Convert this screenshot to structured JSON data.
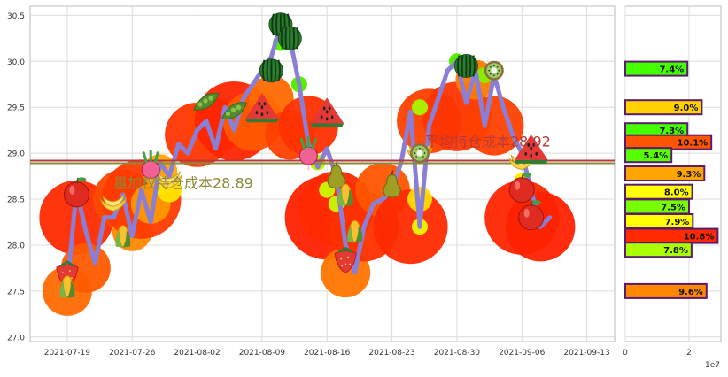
{
  "chart_data": [
    {
      "type": "line",
      "xlim": [
        "2021-07-15",
        "2021-09-16"
      ],
      "ylim": [
        26.95,
        30.6
      ],
      "x_tick_labels": [
        "2021-07-19",
        "2021-07-26",
        "2021-08-02",
        "2021-08-09",
        "2021-08-16",
        "2021-08-23",
        "2021-08-30",
        "2021-09-06",
        "2021-09-13"
      ],
      "y_ticks": [
        27.0,
        27.5,
        28.0,
        28.5,
        29.0,
        29.5,
        30.0,
        30.5
      ],
      "y_tick_labels": [
        "27.0",
        "27.5",
        "28.0",
        "28.5",
        "29.0",
        "29.5",
        "30.0",
        "30.5"
      ],
      "grid": true,
      "price_line": {
        "color": "#8a7fd6",
        "x": [
          "2021-07-19",
          "2021-07-20",
          "2021-07-21",
          "2021-07-22",
          "2021-07-23",
          "2021-07-24",
          "2021-07-25",
          "2021-07-26",
          "2021-07-27",
          "2021-07-28",
          "2021-07-29",
          "2021-07-30",
          "2021-07-31",
          "2021-08-01",
          "2021-08-02",
          "2021-08-03",
          "2021-08-04",
          "2021-08-05",
          "2021-08-06",
          "2021-08-07",
          "2021-08-08",
          "2021-08-09",
          "2021-08-10",
          "2021-08-11",
          "2021-08-12",
          "2021-08-13",
          "2021-08-14",
          "2021-08-15",
          "2021-08-16",
          "2021-08-17",
          "2021-08-18",
          "2021-08-19",
          "2021-08-20",
          "2021-08-21",
          "2021-08-22",
          "2021-08-23",
          "2021-08-24",
          "2021-08-25",
          "2021-08-26",
          "2021-08-27",
          "2021-08-28",
          "2021-08-29",
          "2021-08-30",
          "2021-08-31",
          "2021-09-01",
          "2021-09-02",
          "2021-09-03",
          "2021-09-04",
          "2021-09-05",
          "2021-09-06",
          "2021-09-07",
          "2021-09-08",
          "2021-09-09"
        ],
        "y": [
          27.55,
          28.6,
          28.15,
          27.8,
          28.3,
          28.3,
          28.55,
          28.1,
          28.6,
          28.25,
          28.9,
          28.75,
          29.1,
          29.0,
          29.25,
          29.35,
          29.05,
          29.5,
          29.25,
          29.6,
          29.75,
          29.9,
          30.05,
          30.4,
          30.25,
          29.75,
          29.1,
          28.85,
          29.05,
          28.75,
          28.0,
          27.7,
          28.2,
          28.45,
          28.5,
          28.6,
          28.9,
          29.45,
          28.2,
          29.3,
          29.6,
          29.9,
          30.0,
          29.55,
          29.9,
          29.3,
          29.85,
          29.5,
          29.2,
          29.0,
          28.6,
          28.2,
          28.3
        ]
      },
      "bubbles": [
        {
          "x": "2021-07-19",
          "y": 27.5,
          "color": "#ff6a00",
          "size": 1.0
        },
        {
          "x": "2021-07-20",
          "y": 28.3,
          "color": "#ff2a00",
          "size": 1.5
        },
        {
          "x": "2021-07-21",
          "y": 27.75,
          "color": "#ff5a00",
          "size": 1.0
        },
        {
          "x": "2021-07-25",
          "y": 28.5,
          "color": "#ff4a00",
          "size": 1.2
        },
        {
          "x": "2021-07-26",
          "y": 28.15,
          "color": "#ff8800",
          "size": 0.8
        },
        {
          "x": "2021-07-27",
          "y": 28.5,
          "color": "#ff3a00",
          "size": 1.6
        },
        {
          "x": "2021-07-28",
          "y": 28.45,
          "color": "#ff9900",
          "size": 0.8
        },
        {
          "x": "2021-07-29",
          "y": 28.8,
          "color": "#ffaa00",
          "size": 0.7
        },
        {
          "x": "2021-07-30",
          "y": 28.6,
          "color": "#ffe600",
          "size": 0.5
        },
        {
          "x": "2021-08-02",
          "y": 29.2,
          "color": "#ff3500",
          "size": 1.3
        },
        {
          "x": "2021-08-04",
          "y": 29.3,
          "color": "#ff4500",
          "size": 1.1
        },
        {
          "x": "2021-08-06",
          "y": 29.35,
          "color": "#ff2500",
          "size": 1.6
        },
        {
          "x": "2021-08-08",
          "y": 29.35,
          "color": "#ff5a00",
          "size": 1.2
        },
        {
          "x": "2021-08-10",
          "y": 29.6,
          "color": "#ff6a00",
          "size": 0.9
        },
        {
          "x": "2021-08-12",
          "y": 29.2,
          "color": "#ff4000",
          "size": 1.0
        },
        {
          "x": "2021-08-14",
          "y": 29.3,
          "color": "#ff3000",
          "size": 1.2
        },
        {
          "x": "2021-08-16",
          "y": 28.3,
          "color": "#ff2200",
          "size": 1.7
        },
        {
          "x": "2021-08-17",
          "y": 28.4,
          "color": "#ff2a00",
          "size": 1.5
        },
        {
          "x": "2021-08-18",
          "y": 27.7,
          "color": "#ff7500",
          "size": 1.0
        },
        {
          "x": "2021-08-20",
          "y": 28.2,
          "color": "#ff3000",
          "size": 1.4
        },
        {
          "x": "2021-08-22",
          "y": 28.6,
          "color": "#ff5500",
          "size": 1.1
        },
        {
          "x": "2021-08-25",
          "y": 28.2,
          "color": "#ff2a00",
          "size": 1.5
        },
        {
          "x": "2021-08-26",
          "y": 28.5,
          "color": "#ffdd00",
          "size": 0.5
        },
        {
          "x": "2021-08-27",
          "y": 29.35,
          "color": "#ff4000",
          "size": 1.3
        },
        {
          "x": "2021-08-30",
          "y": 29.4,
          "color": "#ff3500",
          "size": 1.4
        },
        {
          "x": "2021-09-01",
          "y": 29.8,
          "color": "#ff7a00",
          "size": 0.8
        },
        {
          "x": "2021-09-03",
          "y": 29.3,
          "color": "#ff4000",
          "size": 1.2
        },
        {
          "x": "2021-09-06",
          "y": 28.3,
          "color": "#ff2500",
          "size": 1.5
        },
        {
          "x": "2021-09-08",
          "y": 28.2,
          "color": "#ff2200",
          "size": 1.4
        }
      ],
      "small_markers": [
        {
          "x": "2021-08-11",
          "y": 30.2,
          "color": "#55ee00"
        },
        {
          "x": "2021-08-13",
          "y": 29.75,
          "color": "#55ee00"
        },
        {
          "x": "2021-08-15",
          "y": 28.9,
          "color": "#bbee00"
        },
        {
          "x": "2021-08-16",
          "y": 28.6,
          "color": "#ccee00"
        },
        {
          "x": "2021-08-17",
          "y": 28.45,
          "color": "#ccee00"
        },
        {
          "x": "2021-08-26",
          "y": 29.5,
          "color": "#aaee00"
        },
        {
          "x": "2021-08-26",
          "y": 28.2,
          "color": "#eeee00"
        },
        {
          "x": "2021-08-30",
          "y": 30.0,
          "color": "#55ee00"
        },
        {
          "x": "2021-09-02",
          "y": 29.85,
          "color": "#88ee00"
        },
        {
          "x": "2021-09-06",
          "y": 28.7,
          "color": "#ffee00"
        }
      ],
      "fruit_markers": [
        {
          "x": "2021-07-19",
          "y": 27.7,
          "kind": "strawberry"
        },
        {
          "x": "2021-07-19",
          "y": 27.55,
          "kind": "corn"
        },
        {
          "x": "2021-07-20",
          "y": 28.55,
          "kind": "apple"
        },
        {
          "x": "2021-07-24",
          "y": 28.45,
          "kind": "banana"
        },
        {
          "x": "2021-07-25",
          "y": 28.1,
          "kind": "corn"
        },
        {
          "x": "2021-07-28",
          "y": 28.85,
          "kind": "radish"
        },
        {
          "x": "2021-07-30",
          "y": 28.7,
          "kind": "banana"
        },
        {
          "x": "2021-08-03",
          "y": 29.55,
          "kind": "peapod"
        },
        {
          "x": "2021-08-06",
          "y": 29.45,
          "kind": "peapod"
        },
        {
          "x": "2021-08-09",
          "y": 29.5,
          "kind": "watermelon_slice"
        },
        {
          "x": "2021-08-10",
          "y": 29.9,
          "kind": "watermelon"
        },
        {
          "x": "2021-08-11",
          "y": 30.4,
          "kind": "watermelon"
        },
        {
          "x": "2021-08-12",
          "y": 30.25,
          "kind": "watermelon"
        },
        {
          "x": "2021-08-14",
          "y": 29.0,
          "kind": "radish"
        },
        {
          "x": "2021-08-16",
          "y": 29.45,
          "kind": "watermelon_slice"
        },
        {
          "x": "2021-08-17",
          "y": 28.75,
          "kind": "pear"
        },
        {
          "x": "2021-08-18",
          "y": 28.55,
          "kind": "corn"
        },
        {
          "x": "2021-08-18",
          "y": 27.85,
          "kind": "strawberry"
        },
        {
          "x": "2021-08-19",
          "y": 28.15,
          "kind": "corn"
        },
        {
          "x": "2021-08-23",
          "y": 28.65,
          "kind": "pear"
        },
        {
          "x": "2021-08-26",
          "y": 29.0,
          "kind": "banana"
        },
        {
          "x": "2021-08-26",
          "y": 29.0,
          "kind": "kiwi"
        },
        {
          "x": "2021-08-31",
          "y": 29.95,
          "kind": "watermelon"
        },
        {
          "x": "2021-09-03",
          "y": 29.9,
          "kind": "kiwi"
        },
        {
          "x": "2021-09-06",
          "y": 28.9,
          "kind": "banana"
        },
        {
          "x": "2021-09-06",
          "y": 28.6,
          "kind": "apple"
        },
        {
          "x": "2021-09-07",
          "y": 29.05,
          "kind": "watermelon_slice"
        },
        {
          "x": "2021-09-07",
          "y": 28.3,
          "kind": "apple"
        }
      ],
      "hlines": [
        {
          "y": 28.89,
          "color": "#8a8a3a",
          "label": "量加权持仓成本28.89"
        },
        {
          "y": 28.92,
          "color": "#b83a3a",
          "label": "平均持仓成本28.92"
        }
      ]
    },
    {
      "type": "bar",
      "orientation": "horizontal",
      "x_scale_label": "1e7",
      "x_tick_labels": [
        "0",
        "2"
      ],
      "xlim": [
        0,
        3.0
      ],
      "ylim": [
        26.95,
        30.6
      ],
      "bars": [
        {
          "price": 29.92,
          "value": 1.95,
          "label": "7.4%",
          "color": "#44ff00"
        },
        {
          "price": 29.5,
          "value": 2.4,
          "label": "9.0%",
          "color": "#ffd200"
        },
        {
          "price": 29.25,
          "value": 1.95,
          "label": "7.3%",
          "color": "#44ff00"
        },
        {
          "price": 29.12,
          "value": 2.7,
          "label": "10.1%",
          "color": "#ff5500"
        },
        {
          "price": 28.98,
          "value": 1.45,
          "label": "5.4%",
          "color": "#55ff00"
        },
        {
          "price": 28.78,
          "value": 2.48,
          "label": "9.3%",
          "color": "#ffa500"
        },
        {
          "price": 28.58,
          "value": 2.1,
          "label": "8.0%",
          "color": "#ffff00"
        },
        {
          "price": 28.42,
          "value": 2.0,
          "label": "7.5%",
          "color": "#77ff00"
        },
        {
          "price": 28.26,
          "value": 2.12,
          "label": "7.9%",
          "color": "#ffff00"
        },
        {
          "price": 28.1,
          "value": 2.9,
          "label": "10.8%",
          "color": "#ff2a00"
        },
        {
          "price": 27.95,
          "value": 2.08,
          "label": "7.8%",
          "color": "#aaff00"
        },
        {
          "price": 27.5,
          "value": 2.55,
          "label": "9.6%",
          "color": "#ff8800"
        }
      ]
    }
  ]
}
